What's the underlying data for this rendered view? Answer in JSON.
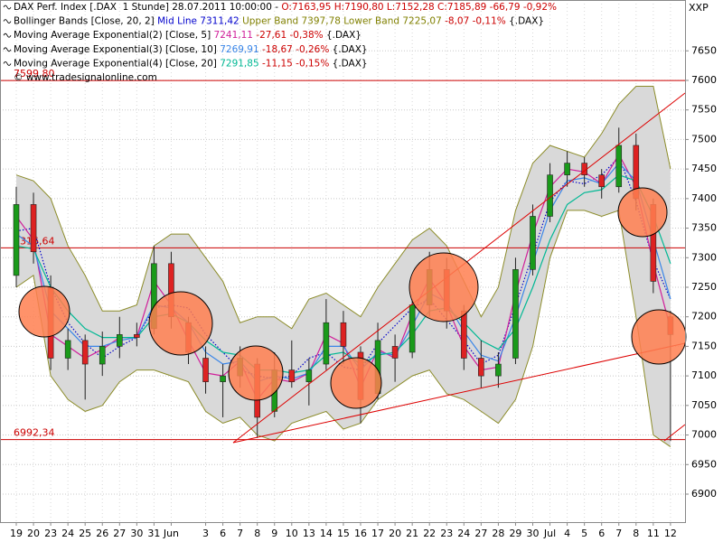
{
  "chart_data": {
    "type": "candlestick",
    "corner_label": "XXP",
    "watermark": "© www.tradesignalonline.com",
    "indicator_labels": [
      [
        {
          "text": "DAX Perf. Index [.DAX  1 Stunde] 28.07.2011 10:00:00 - ",
          "color": "#000000"
        },
        {
          "text": "O:7163,95 H:7190,80 L:7152,28 C:7185,89 -66,79 -0,92%",
          "color": "#cc0000"
        }
      ],
      [
        {
          "text": "Bollinger Bands [Close, 20, 2] ",
          "color": "#000000"
        },
        {
          "text": "Mid Line 7311,42 ",
          "color": "#0000cc"
        },
        {
          "text": "Upper Band 7397,78 Lower Band 7225,07 ",
          "color": "#808000"
        },
        {
          "text": "-8,07 -0,11% ",
          "color": "#cc0000"
        },
        {
          "text": "{.DAX}",
          "color": "#000000"
        }
      ],
      [
        {
          "text": "Moving Average Exponential(2) [Close, 5] ",
          "color": "#000000"
        },
        {
          "text": "7241,11 ",
          "color": "#d0209a"
        },
        {
          "text": "-27,61 -0,38% ",
          "color": "#cc0000"
        },
        {
          "text": "{.DAX}",
          "color": "#000000"
        }
      ],
      [
        {
          "text": "Moving Average Exponential(3) [Close, 10] ",
          "color": "#000000"
        },
        {
          "text": "7269,91 ",
          "color": "#3a86e8"
        },
        {
          "text": "-18,67 -0,26% ",
          "color": "#cc0000"
        },
        {
          "text": "{.DAX}",
          "color": "#000000"
        }
      ],
      [
        {
          "text": "Moving Average Exponential(4) [Close, 20] ",
          "color": "#000000"
        },
        {
          "text": "7291,85 ",
          "color": "#00b894"
        },
        {
          "text": "-11,15 -0,15% ",
          "color": "#cc0000"
        },
        {
          "text": "{.DAX}",
          "color": "#000000"
        }
      ]
    ],
    "categories": [
      "19",
      "20",
      "23",
      "24",
      "25",
      "26",
      "27",
      "30",
      "31",
      "Jun",
      null,
      "3",
      "6",
      "7",
      "8",
      "9",
      "10",
      "13",
      "14",
      "15",
      "16",
      "17",
      "20",
      "21",
      "22",
      "23",
      "24",
      "27",
      "28",
      "29",
      "30",
      "Jul",
      "4",
      "5",
      "6",
      "7",
      "8",
      "11",
      "12"
    ],
    "open": [
      7270,
      7390,
      7250,
      7130,
      7160,
      7120,
      7150,
      7170,
      7180,
      7290,
      7190,
      7130,
      7090,
      7100,
      7120,
      7040,
      7110,
      7090,
      7120,
      7190,
      7140,
      7070,
      7150,
      7140,
      7220,
      7280,
      7210,
      7130,
      7100,
      7130,
      7280,
      7370,
      7440,
      7460,
      7440,
      7420,
      7490,
      7390,
      7200
    ],
    "high": [
      7420,
      7410,
      7270,
      7180,
      7170,
      7175,
      7200,
      7190,
      7320,
      7310,
      7200,
      7150,
      7120,
      7150,
      7130,
      7140,
      7160,
      7130,
      7230,
      7210,
      7150,
      7190,
      7170,
      7230,
      7310,
      7300,
      7220,
      7160,
      7140,
      7300,
      7390,
      7460,
      7480,
      7470,
      7450,
      7520,
      7510,
      7400,
      7210
    ],
    "low": [
      7250,
      7290,
      7110,
      7110,
      7060,
      7100,
      7130,
      7150,
      7170,
      7180,
      7120,
      7070,
      7030,
      7080,
      6995,
      7030,
      7080,
      7050,
      7110,
      7120,
      7020,
      7060,
      7090,
      7130,
      7200,
      7180,
      7110,
      7080,
      7080,
      7120,
      7270,
      7360,
      7420,
      7420,
      7400,
      7410,
      7380,
      7240,
      6990
    ],
    "close": [
      7390,
      7310,
      7130,
      7160,
      7120,
      7150,
      7170,
      7165,
      7290,
      7200,
      7140,
      7090,
      7100,
      7130,
      7030,
      7110,
      7090,
      7110,
      7190,
      7150,
      7060,
      7160,
      7130,
      7220,
      7280,
      7210,
      7130,
      7100,
      7120,
      7280,
      7370,
      7440,
      7460,
      7440,
      7420,
      7490,
      7400,
      7260,
      7170
    ],
    "up_color": "#1a9a1a",
    "down_color": "#dd2222",
    "bands": {
      "upper": [
        7440,
        7430,
        7400,
        7320,
        7270,
        7210,
        7210,
        7220,
        7320,
        7340,
        7340,
        7300,
        7260,
        7190,
        7200,
        7200,
        7180,
        7230,
        7240,
        7220,
        7200,
        7250,
        7290,
        7330,
        7350,
        7320,
        7260,
        7200,
        7250,
        7380,
        7460,
        7490,
        7480,
        7470,
        7510,
        7560,
        7590,
        7590,
        7450
      ],
      "lower": [
        7250,
        7270,
        7100,
        7060,
        7040,
        7050,
        7090,
        7110,
        7110,
        7100,
        7090,
        7040,
        7020,
        7030,
        7000,
        6990,
        7020,
        7030,
        7040,
        7010,
        7020,
        7060,
        7080,
        7100,
        7110,
        7070,
        7060,
        7040,
        7020,
        7060,
        7150,
        7300,
        7380,
        7380,
        7370,
        7380,
        7200,
        7000,
        6980
      ],
      "color": "#8c8c2a",
      "fill": "#d9d9d9"
    },
    "series": [
      {
        "color": "#0000cc",
        "dashed": true,
        "values": [
          7345,
          7350,
          7250,
          7190,
          7155,
          7130,
          7150,
          7165,
          7215,
          7220,
          7215,
          7170,
          7140,
          7110,
          7100,
          7095,
          7100,
          7130,
          7140,
          7115,
          7110,
          7155,
          7185,
          7215,
          7230,
          7195,
          7160,
          7120,
          7135,
          7220,
          7305,
          7395,
          7430,
          7425,
          7440,
          7470,
          7395,
          7295,
          7230
        ]
      },
      {
        "color": "#d0209a",
        "dashed": false,
        "values": [
          7370,
          7330,
          7170,
          7150,
          7130,
          7145,
          7165,
          7165,
          7260,
          7220,
          7160,
          7105,
          7100,
          7125,
          7060,
          7095,
          7090,
          7105,
          7170,
          7155,
          7080,
          7145,
          7130,
          7205,
          7265,
          7220,
          7150,
          7110,
          7115,
          7240,
          7340,
          7420,
          7450,
          7445,
          7425,
          7475,
          7420,
          7290,
          7180
        ]
      },
      {
        "color": "#3a86e8",
        "dashed": false,
        "values": [
          7340,
          7320,
          7210,
          7180,
          7150,
          7150,
          7160,
          7165,
          7220,
          7215,
          7190,
          7140,
          7120,
          7125,
          7090,
          7100,
          7095,
          7105,
          7150,
          7150,
          7110,
          7140,
          7135,
          7185,
          7240,
          7225,
          7175,
          7135,
          7125,
          7200,
          7290,
          7380,
          7430,
          7435,
          7425,
          7460,
          7430,
          7330,
          7230
        ]
      },
      {
        "color": "#00b894",
        "dashed": false,
        "values": [
          7320,
          7315,
          7250,
          7210,
          7180,
          7165,
          7165,
          7165,
          7200,
          7205,
          7190,
          7160,
          7140,
          7135,
          7110,
          7110,
          7105,
          7110,
          7135,
          7140,
          7120,
          7135,
          7140,
          7170,
          7210,
          7215,
          7190,
          7160,
          7145,
          7180,
          7250,
          7330,
          7390,
          7410,
          7415,
          7440,
          7430,
          7370,
          7290
        ]
      }
    ],
    "hlines": [
      {
        "value": 7599.8,
        "label": "7599,80"
      },
      {
        "value": 7316.64,
        "label": "7316,64"
      },
      {
        "value": 6992.34,
        "label": "6992,34"
      }
    ],
    "hline_color": "#cc0000",
    "ylim": [
      6852.6,
      7736
    ],
    "yticks": [
      6900,
      6950,
      7000,
      7050,
      7100,
      7150,
      7200,
      7250,
      7300,
      7350,
      7400,
      7450,
      7500,
      7550,
      7600,
      7650
    ],
    "grid": true
  }
}
